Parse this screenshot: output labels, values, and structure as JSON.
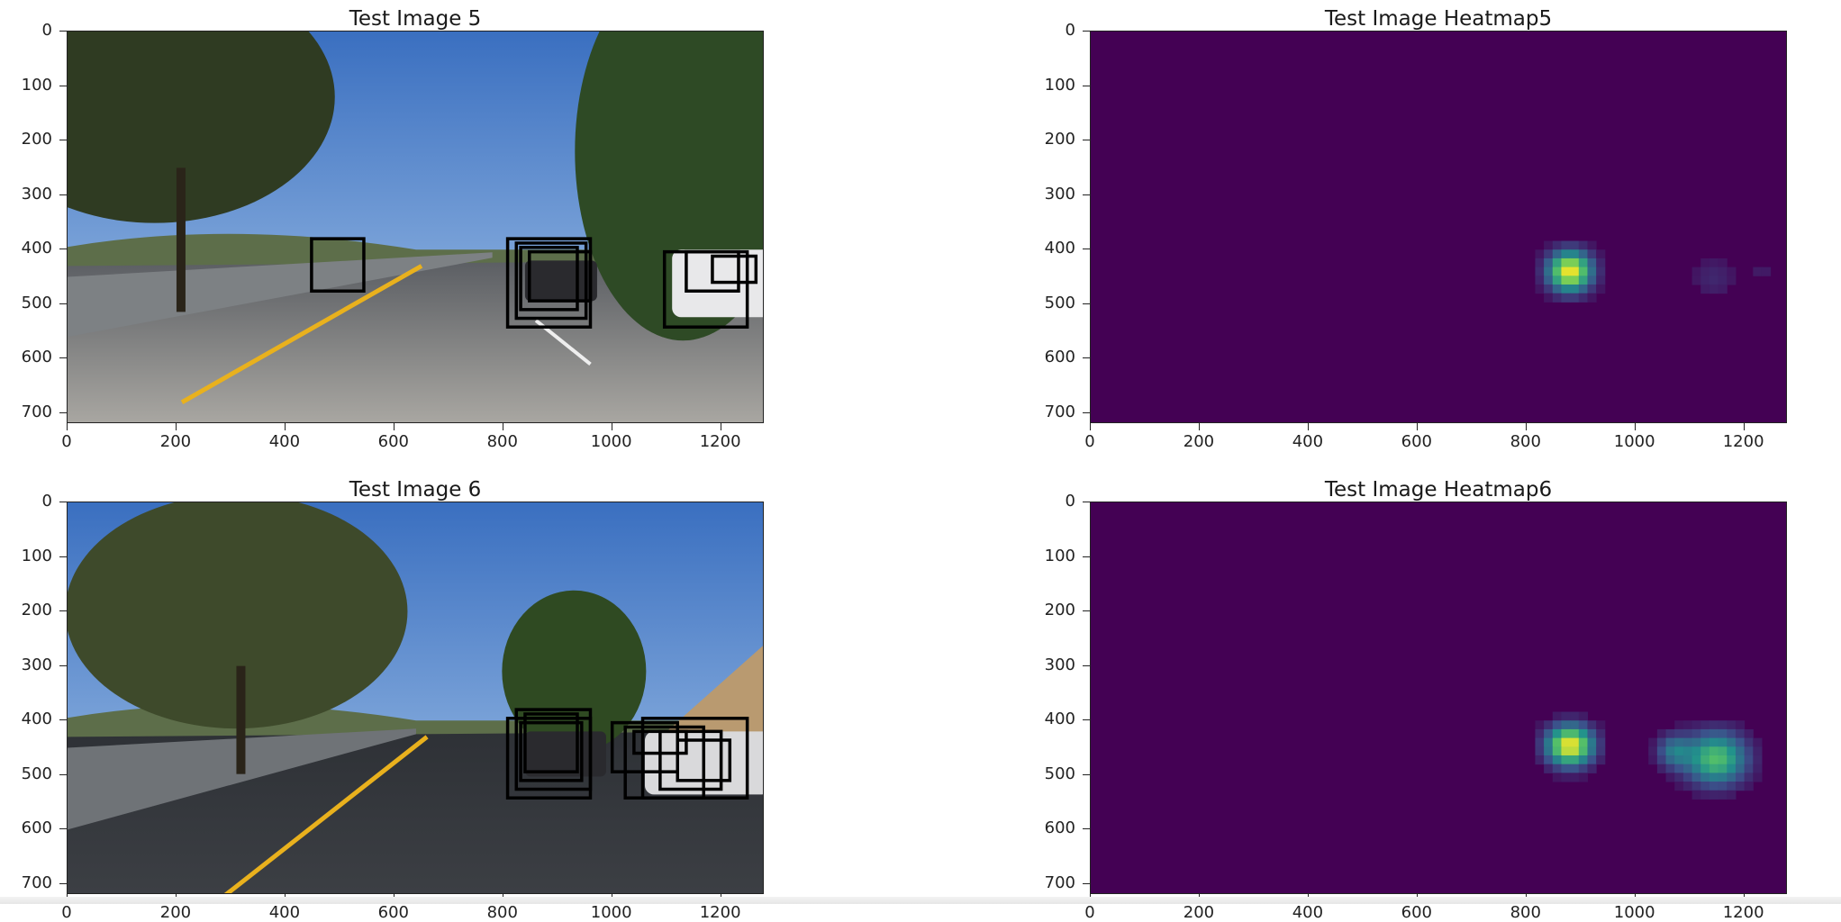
{
  "chart_data": [
    {
      "type": "scatter",
      "title": "Test Image 5",
      "content": "photo",
      "xlim": [
        0,
        1280
      ],
      "ylim": [
        720,
        0
      ],
      "xticks": [
        "0",
        "200",
        "400",
        "600",
        "800",
        "1000",
        "1200"
      ],
      "yticks": [
        "0",
        "100",
        "200",
        "300",
        "400",
        "500",
        "600",
        "700"
      ],
      "grid": false,
      "detection_boxes": [
        {
          "x0": 448,
          "y0": 380,
          "x1": 544,
          "y1": 476
        },
        {
          "x0": 808,
          "y0": 380,
          "x1": 960,
          "y1": 542
        },
        {
          "x0": 824,
          "y0": 388,
          "x1": 952,
          "y1": 526
        },
        {
          "x0": 832,
          "y0": 396,
          "x1": 936,
          "y1": 510
        },
        {
          "x0": 848,
          "y0": 404,
          "x1": 960,
          "y1": 494
        },
        {
          "x0": 1096,
          "y0": 404,
          "x1": 1248,
          "y1": 542
        },
        {
          "x0": 1136,
          "y0": 404,
          "x1": 1232,
          "y1": 476
        },
        {
          "x0": 1184,
          "y0": 412,
          "x1": 1264,
          "y1": 460
        }
      ]
    },
    {
      "type": "heatmap",
      "title": "Test Image Heatmap5",
      "xlim": [
        0,
        1280
      ],
      "ylim": [
        720,
        0
      ],
      "xticks": [
        "0",
        "200",
        "400",
        "600",
        "800",
        "1000",
        "1200"
      ],
      "yticks": [
        "0",
        "100",
        "200",
        "300",
        "400",
        "500",
        "600",
        "700"
      ],
      "grid": false,
      "colormap": "viridis",
      "hotspots": [
        {
          "x": 880,
          "y": 440,
          "peak": 1.0,
          "sx": 28,
          "sy": 26
        },
        {
          "x": 1144,
          "y": 452,
          "peak": 0.12,
          "sx": 30,
          "sy": 28
        },
        {
          "x": 1232,
          "y": 436,
          "peak": 0.1,
          "sx": 12,
          "sy": 12
        }
      ]
    },
    {
      "type": "scatter",
      "title": "Test Image 6",
      "content": "photo",
      "xlim": [
        0,
        1280
      ],
      "ylim": [
        720,
        0
      ],
      "xticks": [
        "0",
        "200",
        "400",
        "600",
        "800",
        "1000",
        "1200"
      ],
      "yticks": [
        "0",
        "100",
        "200",
        "300",
        "400",
        "500",
        "600",
        "700"
      ],
      "grid": false,
      "detection_boxes": [
        {
          "x0": 808,
          "y0": 396,
          "x1": 960,
          "y1": 542
        },
        {
          "x0": 824,
          "y0": 380,
          "x1": 960,
          "y1": 526
        },
        {
          "x0": 832,
          "y0": 404,
          "x1": 944,
          "y1": 510
        },
        {
          "x0": 840,
          "y0": 388,
          "x1": 936,
          "y1": 494
        },
        {
          "x0": 1000,
          "y0": 404,
          "x1": 1120,
          "y1": 494
        },
        {
          "x0": 1024,
          "y0": 412,
          "x1": 1168,
          "y1": 542
        },
        {
          "x0": 1056,
          "y0": 396,
          "x1": 1248,
          "y1": 542
        },
        {
          "x0": 1088,
          "y0": 420,
          "x1": 1200,
          "y1": 526
        },
        {
          "x0": 1120,
          "y0": 436,
          "x1": 1216,
          "y1": 510
        },
        {
          "x0": 1040,
          "y0": 420,
          "x1": 1136,
          "y1": 460
        }
      ]
    },
    {
      "type": "heatmap",
      "title": "Test Image Heatmap6",
      "xlim": [
        0,
        1280
      ],
      "ylim": [
        720,
        0
      ],
      "xticks": [
        "0",
        "200",
        "400",
        "600",
        "800",
        "1000",
        "1200"
      ],
      "yticks": [
        "0",
        "100",
        "200",
        "300",
        "400",
        "500",
        "600",
        "700"
      ],
      "grid": false,
      "colormap": "viridis",
      "hotspots": [
        {
          "x": 880,
          "y": 446,
          "peak": 1.0,
          "sx": 30,
          "sy": 26
        },
        {
          "x": 1148,
          "y": 470,
          "peak": 0.7,
          "sx": 40,
          "sy": 34
        },
        {
          "x": 1070,
          "y": 456,
          "peak": 0.35,
          "sx": 22,
          "sy": 22
        }
      ]
    }
  ]
}
